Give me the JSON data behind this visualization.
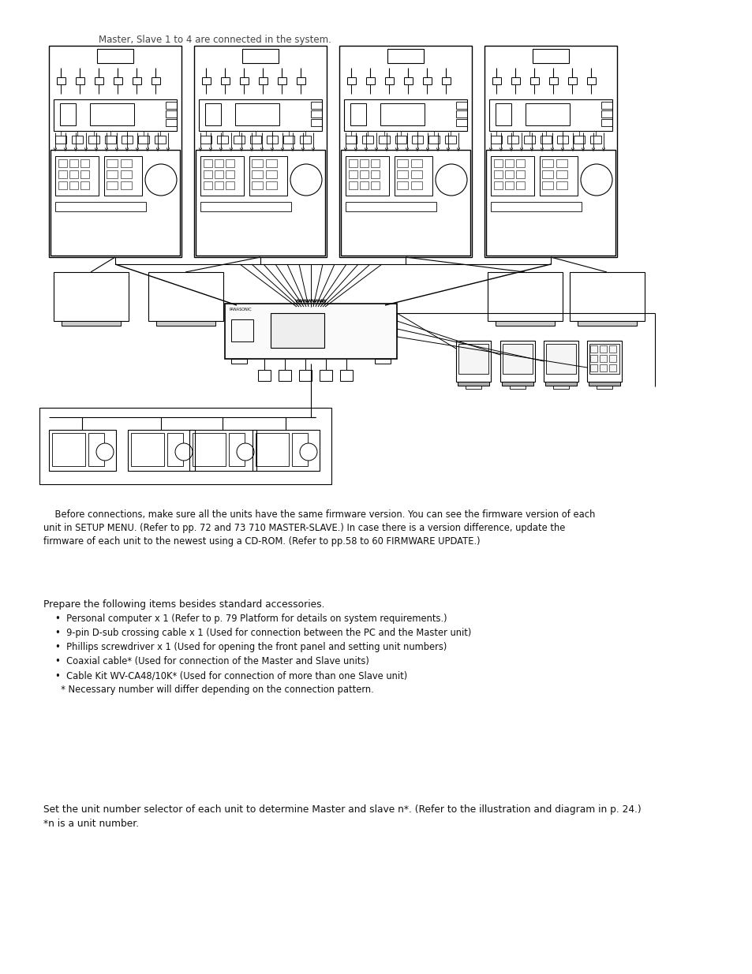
{
  "title_text": "Master, Slave 1 to 4 are connected in the system.",
  "note_text_1": "    Before connections, make sure all the units have the same firmware version. You can see the firmware version of each",
  "note_text_2": "unit in SETUP MENU. (Refer to pp. 72 and 73 710 MASTER-SLAVE.) In case there is a version difference, update the",
  "note_text_3": "firmware of each unit to the newest using a CD-ROM. (Refer to pp.58 to 60 FIRMWARE UPDATE.)",
  "prepare_header": "Prepare the following items besides standard accessories.",
  "bullet_items": [
    "•  Personal computer x 1 (Refer to p. 79 Platform for details on system requirements.)",
    "•  9-pin D-sub crossing cable x 1 (Used for connection between the PC and the Master unit)",
    "•  Phillips screwdriver x 1 (Used for opening the front panel and setting unit numbers)",
    "•  Coaxial cable* (Used for connection of the Master and Slave units)",
    "•  Cable Kit WV-CA48/10K* (Used for connection of more than one Slave unit)",
    "  * Necessary number will differ depending on the connection pattern."
  ],
  "unit_select_text1": "Set the unit number selector of each unit to determine Master and slave n*. (Refer to the illustration and diagram in p. 24.)",
  "unit_select_text2": "*n is a unit number.",
  "bg_color": "#ffffff",
  "line_color": "#000000"
}
